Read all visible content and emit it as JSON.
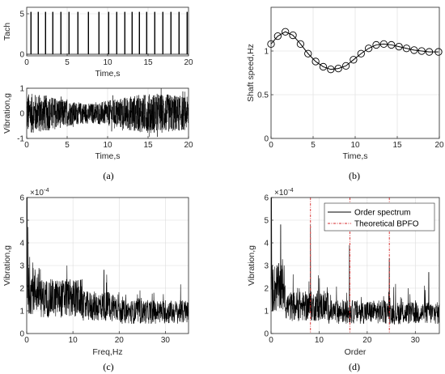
{
  "chart_data": [
    {
      "id": "a-top",
      "type": "line",
      "xlabel": "Time,s",
      "ylabel": "Tach",
      "xlim": [
        0,
        20
      ],
      "ylim": [
        -0.2,
        5.8
      ],
      "xticks": [
        "0",
        "5",
        "10",
        "15",
        "20"
      ],
      "yticks": [
        "0",
        "5"
      ],
      "grid": true,
      "pulse_times_s": [
        0.5,
        1.4,
        2.3,
        3.2,
        4.2,
        5.2,
        6.3,
        7.6,
        8.9,
        10.1,
        11.1,
        12.1,
        13.0,
        13.9,
        14.8,
        15.8,
        16.8,
        17.8,
        18.8,
        19.8
      ],
      "pulse_height": 5.2
    },
    {
      "id": "a-bottom",
      "type": "line",
      "xlabel": "Time,s",
      "ylabel": "Vibration,g",
      "xlim": [
        0,
        20
      ],
      "ylim": [
        -1,
        1
      ],
      "xticks": [
        "0",
        "5",
        "10",
        "15",
        "20"
      ],
      "yticks": [
        "-1",
        "0",
        "1"
      ],
      "grid": true,
      "series": [
        {
          "x": [
            0,
            2,
            4,
            6,
            8,
            10,
            12,
            14,
            16,
            18,
            20
          ],
          "amplitude_envelope": [
            0.8,
            0.75,
            0.6,
            0.45,
            0.4,
            0.5,
            0.65,
            0.75,
            0.8,
            0.75,
            0.65
          ]
        }
      ]
    },
    {
      "id": "b",
      "type": "line",
      "xlabel": "Time,s",
      "ylabel": "Shaft speed,Hz",
      "xlim": [
        0,
        20
      ],
      "ylim": [
        0,
        1.5
      ],
      "xticks": [
        "0",
        "5",
        "10",
        "15",
        "20"
      ],
      "yticks": [
        "0",
        "0.5",
        "1"
      ],
      "grid": true,
      "markers": "circle",
      "series": [
        {
          "x": [
            0,
            0.8,
            1.7,
            2.6,
            3.5,
            4.4,
            5.3,
            6.2,
            7.1,
            8.0,
            8.9,
            9.8,
            10.7,
            11.6,
            12.5,
            13.4,
            14.3,
            15.2,
            16.1,
            17.0,
            17.9,
            18.8,
            19.9
          ],
          "y": [
            1.08,
            1.17,
            1.22,
            1.18,
            1.08,
            0.97,
            0.88,
            0.82,
            0.79,
            0.8,
            0.83,
            0.9,
            0.97,
            1.03,
            1.07,
            1.08,
            1.07,
            1.05,
            1.03,
            1.01,
            1.0,
            0.99,
            0.99
          ]
        }
      ]
    },
    {
      "id": "c",
      "type": "line",
      "xlabel": "Freq,Hz",
      "ylabel": "Vibration,g",
      "exponent_label": "×10",
      "exponent": "-4",
      "xlim": [
        0,
        35
      ],
      "ylim": [
        0,
        6
      ],
      "xticks": [
        "0",
        "10",
        "20",
        "30"
      ],
      "yticks": [
        "0",
        "1",
        "2",
        "3",
        "4",
        "5",
        "6"
      ],
      "grid": true,
      "peaks": [
        [
          0.1,
          6.0
        ],
        [
          0.3,
          4.7
        ],
        [
          8.7,
          3.0
        ],
        [
          16.7,
          2.8
        ],
        [
          17.3,
          2.6
        ],
        [
          24.5,
          1.9
        ]
      ]
    },
    {
      "id": "d",
      "type": "line",
      "xlabel": "Order",
      "ylabel": "Vibration,g",
      "exponent_label": "×10",
      "exponent": "-4",
      "xlim": [
        0,
        35
      ],
      "ylim": [
        0,
        6
      ],
      "xticks": [
        "0",
        "10",
        "20",
        "30"
      ],
      "yticks": [
        "0",
        "1",
        "2",
        "3",
        "4",
        "5",
        "6"
      ],
      "grid": true,
      "legend": "top-right",
      "series": [
        {
          "name": "Order spectrum",
          "peaks": [
            [
              0.1,
              6.0
            ],
            [
              2.0,
              4.8
            ],
            [
              8.2,
              4.8
            ],
            [
              16.3,
              3.9
            ],
            [
              24.6,
              3.3
            ],
            [
              32.8,
              2.7
            ]
          ]
        },
        {
          "name": "Theoretical BPFO",
          "x": [
            8.2,
            16.4,
            24.6
          ]
        }
      ]
    }
  ],
  "captions": {
    "a": "(a)",
    "b": "(b)",
    "c": "(c)",
    "d": "(d)"
  },
  "colors": {
    "signal": "#000000",
    "bpfo": "#d62728",
    "grid": "#dcdcdc",
    "axes": "#262626"
  }
}
